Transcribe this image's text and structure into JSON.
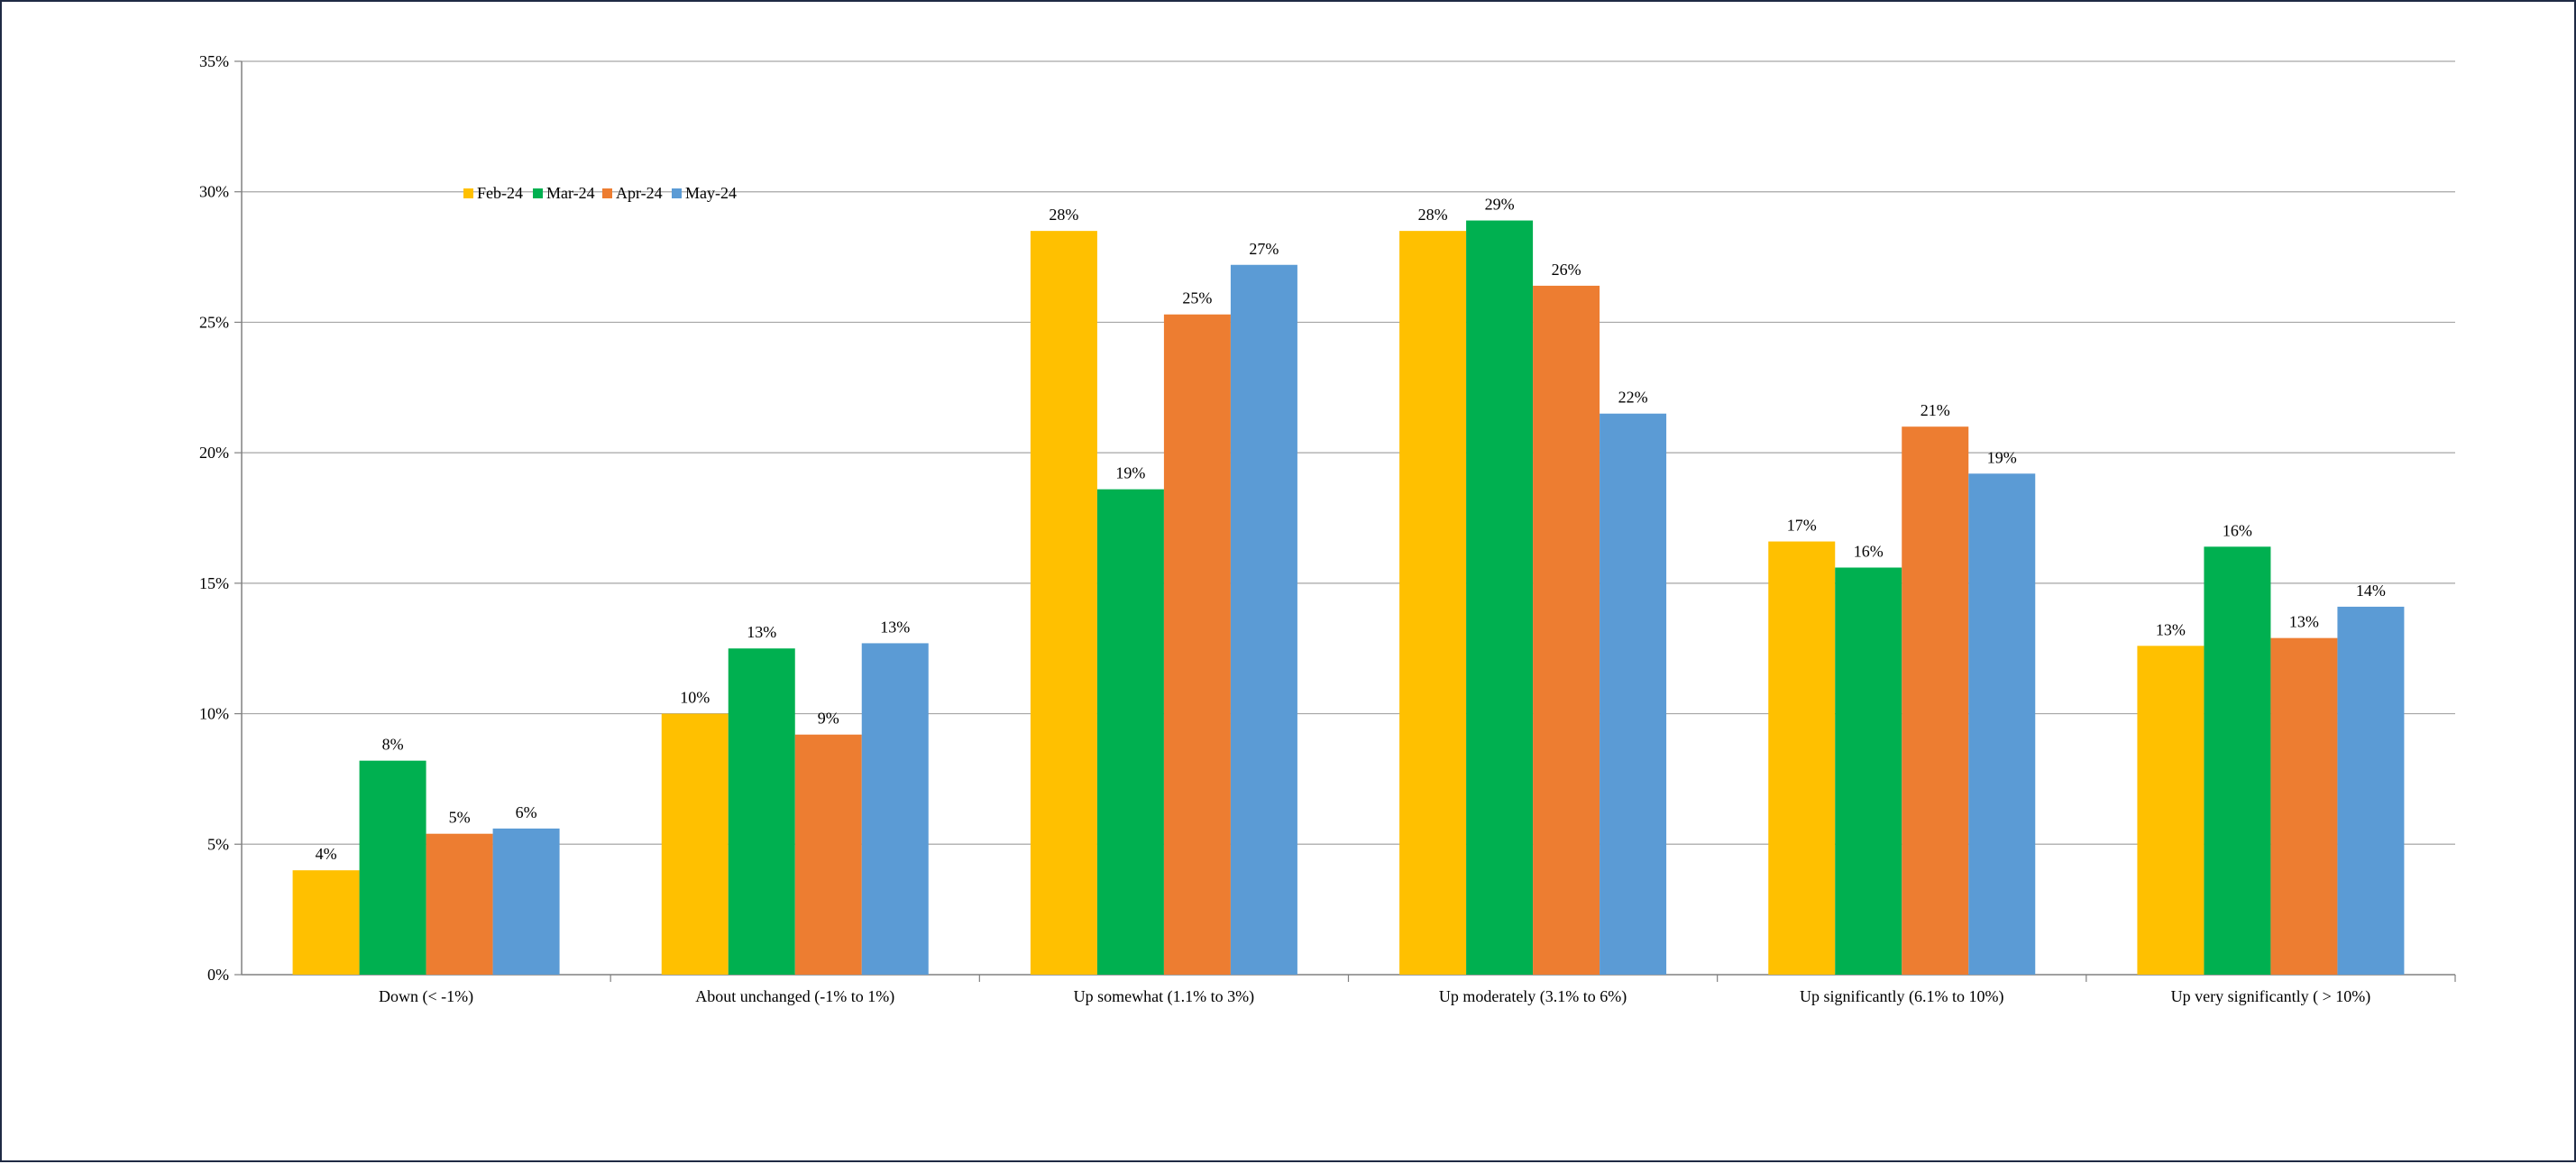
{
  "chart_data": {
    "type": "bar",
    "title": "",
    "xlabel": "",
    "ylabel": "",
    "ylim": [
      0,
      35
    ],
    "yticks": [
      "0%",
      "5%",
      "10%",
      "15%",
      "20%",
      "25%",
      "30%",
      "35%"
    ],
    "grid": true,
    "legend_position": "top-left",
    "categories": [
      "Down (< -1%)",
      "About unchanged (-1% to 1%)",
      "Up somewhat (1.1% to 3%)",
      "Up moderately (3.1% to 6%)",
      "Up significantly (6.1% to 10%)",
      "Up very significantly ( > 10%)"
    ],
    "series": [
      {
        "name": "Feb-24",
        "color": "#FFC000",
        "values": [
          4.0,
          10.0,
          28.5,
          28.5,
          16.6,
          12.6
        ],
        "labels": [
          "4%",
          "10%",
          "28%",
          "28%",
          "17%",
          "13%"
        ]
      },
      {
        "name": "Mar-24",
        "color": "#00B050",
        "values": [
          8.2,
          12.5,
          18.6,
          28.9,
          15.6,
          16.4
        ],
        "labels": [
          "8%",
          "13%",
          "19%",
          "29%",
          "16%",
          "16%"
        ]
      },
      {
        "name": "Apr-24",
        "color": "#ED7D31",
        "values": [
          5.4,
          9.2,
          25.3,
          26.4,
          21.0,
          12.9
        ],
        "labels": [
          "5%",
          "9%",
          "25%",
          "26%",
          "21%",
          "13%"
        ]
      },
      {
        "name": "May-24",
        "color": "#5B9BD5",
        "values": [
          5.6,
          12.7,
          27.2,
          21.5,
          19.2,
          14.1
        ],
        "labels": [
          "6%",
          "13%",
          "27%",
          "22%",
          "19%",
          "14%"
        ]
      }
    ]
  }
}
